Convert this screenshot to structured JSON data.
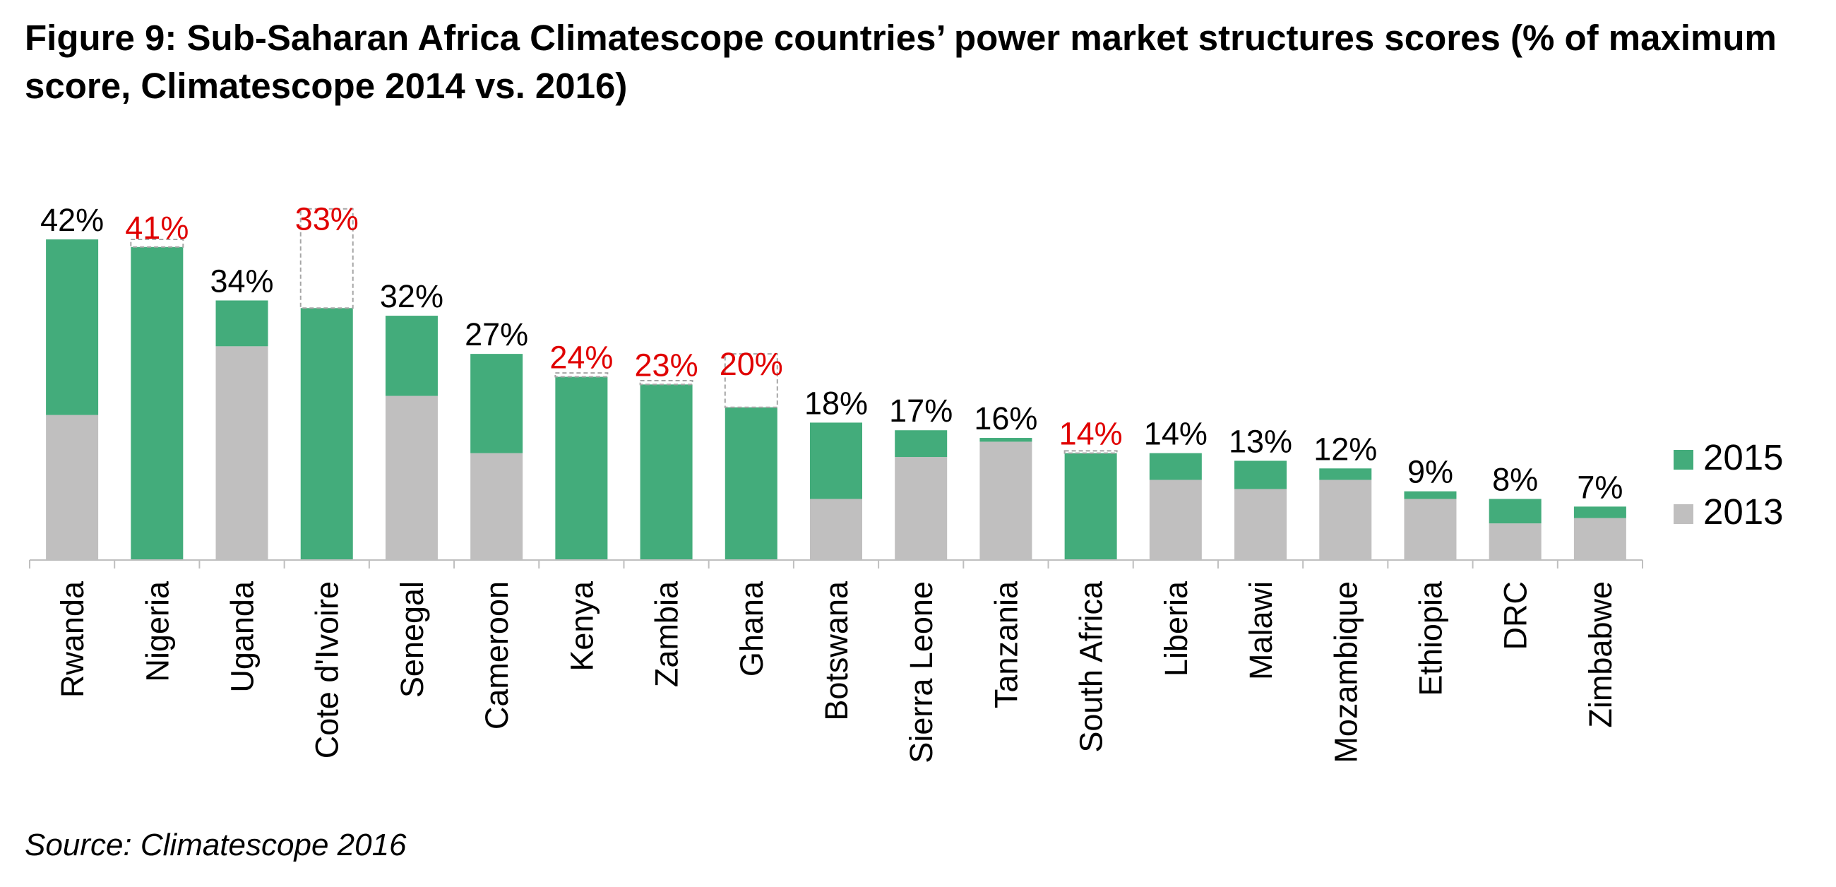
{
  "title": "Figure 9: Sub-Saharan Africa Climatescope countries’ power market structures scores (% of maximum score, Climatescope 2014 vs. 2016)",
  "source": "Source: Climatescope 2016",
  "colors": {
    "2015": "#43AC7B",
    "2013": "#C0BFBF",
    "label_normal": "#000000",
    "label_decrease": "#E00000",
    "decrease_box": "#A6A6A6",
    "axis": "#BFBFBF"
  },
  "chart_data": {
    "type": "bar",
    "stacked": true,
    "categories": [
      "Rwanda",
      "Nigeria",
      "Uganda",
      "Cote d'Ivoire",
      "Senegal",
      "Cameroon",
      "Kenya",
      "Zambia",
      "Ghana",
      "Botswana",
      "Sierra Leone",
      "Tanzania",
      "South Africa",
      "Liberia",
      "Malawi",
      "Mozambique",
      "Ethiopia",
      "DRC",
      "Zimbabwe"
    ],
    "series": [
      {
        "name": "2013",
        "values": [
          19,
          0,
          28,
          0,
          21.5,
          14,
          0,
          0,
          0,
          8,
          13.5,
          15.5,
          0,
          10.5,
          9.3,
          10.5,
          8,
          4.8,
          5.5
        ]
      },
      {
        "name": "2015",
        "values": [
          23,
          41,
          6,
          33,
          10.5,
          13,
          24,
          23,
          20,
          10,
          3.5,
          0.5,
          14,
          3.5,
          3.7,
          1.5,
          1,
          3.2,
          1.5
        ]
      }
    ],
    "totals_labels": [
      "42%",
      "41%",
      "34%",
      "33%",
      "32%",
      "27%",
      "24%",
      "23%",
      "20%",
      "18%",
      "17%",
      "16%",
      "14%",
      "14%",
      "13%",
      "12%",
      "9%",
      "8%",
      "7%"
    ],
    "decreased": [
      false,
      true,
      false,
      true,
      false,
      false,
      true,
      true,
      true,
      false,
      false,
      false,
      true,
      false,
      false,
      false,
      false,
      false,
      false
    ],
    "previous_totals": [
      null,
      42,
      null,
      46,
      null,
      null,
      24.5,
      23.5,
      27,
      null,
      null,
      null,
      14.3,
      null,
      null,
      null,
      null,
      null,
      null
    ],
    "legend": [
      "2015",
      "2013"
    ],
    "legend_position": "right",
    "ylim": [
      0,
      45
    ],
    "grid": false,
    "xlabel": "",
    "ylabel": ""
  }
}
